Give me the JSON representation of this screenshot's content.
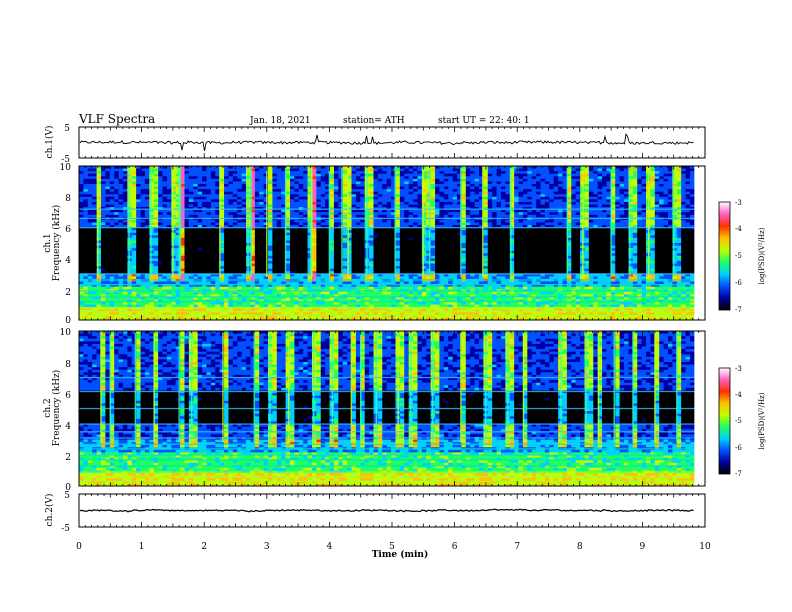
{
  "header": {
    "title": "VLF Spectra",
    "date": "Jan. 18, 2021",
    "station": "station= ATH",
    "start": "start  UT  =   22: 40: 1"
  },
  "panels": [
    {
      "id": "ch1v",
      "ylabel": "ch.1(V)",
      "yticks": [
        "5",
        "-5"
      ]
    },
    {
      "id": "ch1s",
      "ylabel_line1": "ch.1",
      "ylabel_line2": "Frequency (kHz)",
      "yticks": [
        "0",
        "2",
        "4",
        "6",
        "8",
        "10"
      ]
    },
    {
      "id": "ch2s",
      "ylabel_line1": "ch.2",
      "ylabel_line2": "Frequency (kHz)",
      "yticks": [
        "0",
        "2",
        "4",
        "6",
        "8",
        "10"
      ]
    },
    {
      "id": "ch2v",
      "ylabel": "ch.2(V)",
      "yticks": [
        "5",
        "-5"
      ]
    }
  ],
  "colorbar": {
    "label": "log(PSD)(V²/Hz)",
    "ticks": [
      "-3",
      "-4",
      "-5",
      "-6",
      "-7"
    ],
    "colors": [
      "#000000",
      "#0000a0",
      "#0050ff",
      "#00d0ff",
      "#20ff60",
      "#c0ff00",
      "#ffc000",
      "#ff3000",
      "#ff60c0",
      "#ffffff"
    ]
  },
  "chart_data": [
    {
      "type": "line",
      "title": "VLF Spectra",
      "ylabel": "ch.1(V)",
      "xlabel": "",
      "xlim": [
        0,
        10
      ],
      "ylim": [
        -5,
        5
      ],
      "x_range_data": [
        0,
        9.83
      ],
      "baseline_value": 0,
      "noise_amplitude": 0.4,
      "spikes": [
        1.65,
        2.0,
        3.8,
        4.6,
        4.7,
        8.4,
        8.75
      ]
    },
    {
      "type": "heatmap",
      "ylabel": "ch.1 Frequency (kHz)",
      "xlim": [
        0,
        10
      ],
      "ylim": [
        0,
        10
      ],
      "zlim": [
        -7,
        -3
      ],
      "z_label": "log(PSD)(V²/Hz)",
      "x_range_data": [
        0,
        9.83
      ],
      "dark_band_khz": [
        3.0,
        6.0
      ],
      "bright_lines_khz": [
        0.3,
        0.55,
        0.8,
        1.2,
        1.5,
        1.9,
        2.3,
        2.6,
        3.0,
        6.0,
        6.6,
        7.2
      ],
      "bursts_min": [
        0.3,
        0.8,
        1.15,
        1.5,
        1.6,
        1.62,
        2.25,
        2.7,
        2.75,
        3.0,
        3.3,
        3.7,
        3.72,
        4.0,
        4.2,
        4.3,
        4.6,
        5.05,
        5.5,
        5.6,
        6.1,
        6.45,
        6.9,
        7.8,
        8.05,
        8.5,
        8.8,
        9.1,
        9.5
      ]
    },
    {
      "type": "heatmap",
      "ylabel": "ch.2 Frequency (kHz)",
      "xlim": [
        0,
        10
      ],
      "ylim": [
        0,
        10
      ],
      "zlim": [
        -7,
        -3
      ],
      "z_label": "log(PSD)(V²/Hz)",
      "x_range_data": [
        0,
        9.83
      ],
      "dark_band_khz": [
        4.0,
        6.2
      ],
      "bright_lines_khz": [
        0.3,
        0.6,
        0.9,
        1.3,
        1.7,
        2.0,
        2.4,
        2.7,
        3.1,
        3.5,
        4.0,
        5.0,
        6.1,
        7.0
      ],
      "bursts_min": [
        0.35,
        0.5,
        0.9,
        1.2,
        1.6,
        1.8,
        2.3,
        2.8,
        3.05,
        3.35,
        3.75,
        4.05,
        4.35,
        4.5,
        4.75,
        5.1,
        5.3,
        5.65,
        6.1,
        6.5,
        6.85,
        7.1,
        7.7,
        8.1,
        8.3,
        8.55,
        8.85,
        9.2,
        9.55
      ]
    },
    {
      "type": "line",
      "ylabel": "ch.2(V)",
      "xlabel": "Time (min)",
      "xlim": [
        0,
        10
      ],
      "ylim": [
        -5,
        5
      ],
      "x_range_data": [
        0,
        9.83
      ],
      "baseline_value": 0,
      "noise_amplitude": 0.3,
      "xticks": [
        "0",
        "1",
        "2",
        "3",
        "4",
        "5",
        "6",
        "7",
        "8",
        "9",
        "10"
      ]
    }
  ]
}
